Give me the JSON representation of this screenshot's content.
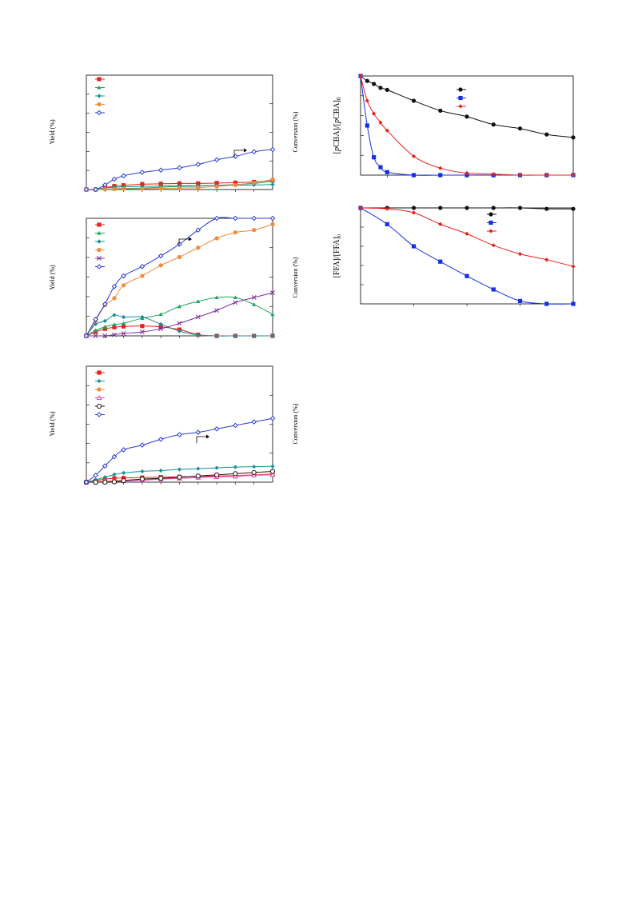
{
  "chart_data": [
    {
      "type": "line",
      "ylabel": "Yield (%)",
      "y2label": "Conversion (%)",
      "xlim": [
        0,
        10
      ],
      "ylim": [
        0,
        30
      ],
      "y2lim": [
        0,
        100
      ],
      "grid": false,
      "legend_placement": "top-left",
      "annotation_arrow": "right",
      "x": [
        0,
        0.5,
        1,
        1.5,
        2,
        3,
        4,
        5,
        6,
        7,
        8,
        9,
        10
      ],
      "series": [
        {
          "color": "#e8211d",
          "marker": "square",
          "axis": "left",
          "values": [
            0,
            0,
            0.5,
            0.9,
            1.1,
            1.4,
            1.5,
            1.6,
            1.6,
            1.7,
            1.8,
            2.0,
            2.4
          ]
        },
        {
          "color": "#1fa55e",
          "marker": "triangle",
          "axis": "left",
          "values": [
            0,
            0,
            0.1,
            0.2,
            0.3,
            0.4,
            0.6,
            0.8,
            0.9,
            1.1,
            1.3,
            1.6,
            2.2
          ]
        },
        {
          "color": "#17909a",
          "marker": "diamond",
          "axis": "left",
          "values": [
            0,
            0,
            0.4,
            0.6,
            0.7,
            0.8,
            0.9,
            1.0,
            1.0,
            1.1,
            1.1,
            1.2,
            1.3
          ]
        },
        {
          "color": "#f28a3c",
          "marker": "circle",
          "axis": "left",
          "values": [
            0,
            0,
            0.1,
            0.1,
            0.2,
            0.2,
            0.3,
            0.4,
            0.5,
            0.8,
            1.2,
            1.8,
            2.6
          ]
        },
        {
          "color": "#2b3ccf",
          "marker": "open-diamond",
          "axis": "right",
          "values": [
            0,
            0,
            4,
            9,
            12,
            15,
            17,
            19,
            22,
            26,
            29,
            33,
            35
          ]
        }
      ]
    },
    {
      "type": "line",
      "ylabel": "Yield (%)",
      "y2label": "Conversion (%)",
      "xlim": [
        0,
        10
      ],
      "ylim": [
        0,
        30
      ],
      "y2lim": [
        0,
        100
      ],
      "grid": false,
      "legend_placement": "top-left",
      "annotation_arrow": "right",
      "x": [
        0,
        0.5,
        1,
        1.5,
        2,
        3,
        4,
        5,
        6,
        7,
        8,
        9,
        10
      ],
      "series": [
        {
          "color": "#e8211d",
          "marker": "square",
          "axis": "left",
          "values": [
            0,
            1,
            1.8,
            2.2,
            2.4,
            2.5,
            2.3,
            1.6,
            0.3,
            0,
            0,
            0,
            0
          ]
        },
        {
          "color": "#1fa55e",
          "marker": "triangle",
          "axis": "left",
          "values": [
            0,
            1.4,
            2.3,
            2.9,
            3.2,
            4.5,
            5.5,
            7.5,
            8.8,
            9.8,
            9.8,
            8.0,
            5.5
          ]
        },
        {
          "color": "#17909a",
          "marker": "diamond",
          "axis": "left",
          "values": [
            0,
            3,
            3.8,
            5.3,
            4.8,
            4.8,
            3.0,
            1.2,
            0.2,
            0,
            0,
            0,
            0
          ]
        },
        {
          "color": "#f28a3c",
          "marker": "circle",
          "axis": "right",
          "values": [
            0,
            13,
            26,
            32,
            43,
            51,
            60,
            67,
            75,
            83,
            88,
            90,
            95
          ]
        },
        {
          "color": "#7b2d9b",
          "marker": "x",
          "axis": "left",
          "values": [
            0,
            0,
            0,
            0.3,
            0.6,
            1.0,
            1.8,
            3.2,
            4.8,
            6.5,
            8.5,
            9.8,
            11.0
          ]
        },
        {
          "color": "#2b3ccf",
          "marker": "open-diamond",
          "axis": "right",
          "values": [
            0,
            14,
            27,
            42,
            51,
            59,
            68,
            78,
            90,
            100,
            100,
            100,
            100
          ]
        }
      ]
    },
    {
      "type": "line",
      "ylabel": "Yield (%)",
      "y2label": "Conversion (%)",
      "xlim": [
        0,
        10
      ],
      "ylim": [
        0,
        30
      ],
      "y2lim": [
        0,
        100
      ],
      "grid": false,
      "legend_placement": "top-left",
      "annotation_arrow": "right",
      "x": [
        0,
        0.5,
        1,
        1.5,
        2,
        3,
        4,
        5,
        6,
        7,
        8,
        9,
        10
      ],
      "series": [
        {
          "color": "#e8211d",
          "marker": "square",
          "axis": "left",
          "values": [
            0,
            0.4,
            0.8,
            1.0,
            1.1,
            1.2,
            1.3,
            1.4,
            1.5,
            1.6,
            1.7,
            1.9,
            2.1
          ]
        },
        {
          "color": "#17909a",
          "marker": "diamond",
          "axis": "left",
          "values": [
            0,
            0.6,
            1.3,
            2.0,
            2.4,
            2.8,
            3.0,
            3.3,
            3.5,
            3.7,
            3.9,
            4.0,
            4.1
          ]
        },
        {
          "color": "#f28a3c",
          "marker": "circle",
          "axis": "left",
          "values": [
            0,
            0.1,
            0.3,
            0.4,
            0.5,
            0.7,
            0.9,
            1.0,
            1.2,
            1.4,
            1.6,
            1.8,
            2.0
          ]
        },
        {
          "color": "#e23fb8",
          "marker": "open-triangle",
          "axis": "left",
          "values": [
            0,
            0,
            0.1,
            0.2,
            0.3,
            0.5,
            0.8,
            1.0,
            1.2,
            1.4,
            1.5,
            1.8,
            1.9
          ]
        },
        {
          "color": "#1a1a1a",
          "marker": "open-circle",
          "axis": "left",
          "values": [
            0,
            0,
            0,
            0.1,
            0.4,
            0.8,
            1.0,
            1.3,
            1.6,
            1.9,
            2.2,
            2.5,
            2.8
          ]
        },
        {
          "color": "#2b3ccf",
          "marker": "open-diamond",
          "axis": "right",
          "values": [
            0,
            6,
            14,
            22,
            28,
            32,
            37,
            41,
            43,
            46,
            49,
            52,
            55
          ]
        }
      ]
    },
    {
      "type": "line",
      "ylabel_parts": {
        "open": "[",
        "italic": "p",
        "name": "CBA]",
        "sep": "/[",
        "italic2": "p",
        "name2": "CBA]",
        "sub": "0"
      },
      "xlim": [
        0,
        8
      ],
      "ylim": [
        0,
        1
      ],
      "grid": false,
      "legend_placement": "top-right",
      "x": [
        0,
        0.25,
        0.5,
        0.75,
        1,
        2,
        3,
        4,
        5,
        6,
        7,
        8
      ],
      "series": [
        {
          "color": "#111111",
          "marker": "circle",
          "values": [
            1.0,
            0.95,
            0.92,
            0.88,
            0.86,
            0.75,
            0.65,
            0.59,
            0.51,
            0.47,
            0.41,
            0.38
          ]
        },
        {
          "color": "#1430e0",
          "marker": "square",
          "values": [
            1.0,
            0.5,
            0.18,
            0.08,
            0.03,
            0.0,
            0.0,
            0.0,
            0.0,
            0.0,
            0.0,
            0.0
          ]
        },
        {
          "color": "#e8211d",
          "marker": "diamond",
          "values": [
            1.0,
            0.75,
            0.62,
            0.53,
            0.45,
            0.19,
            0.07,
            0.02,
            0.01,
            0.0,
            0.0,
            0.0
          ]
        }
      ]
    },
    {
      "type": "line",
      "ylabel": "[FFA]/[FFA]₀",
      "xlim": [
        0,
        8
      ],
      "ylim": [
        0,
        1
      ],
      "grid": false,
      "legend_placement": "top-right",
      "x": [
        0,
        1,
        2,
        3,
        4,
        5,
        6,
        7,
        8
      ],
      "series": [
        {
          "color": "#111111",
          "marker": "circle",
          "values": [
            1.0,
            1.0,
            1.0,
            1.0,
            1.0,
            1.0,
            1.0,
            0.99,
            0.99
          ]
        },
        {
          "color": "#1430e0",
          "marker": "square",
          "values": [
            1.0,
            0.83,
            0.6,
            0.44,
            0.29,
            0.15,
            0.03,
            0.0,
            0.0
          ]
        },
        {
          "color": "#e8211d",
          "marker": "diamond",
          "values": [
            1.0,
            0.99,
            0.95,
            0.83,
            0.73,
            0.61,
            0.52,
            0.46,
            0.39
          ]
        }
      ]
    }
  ]
}
